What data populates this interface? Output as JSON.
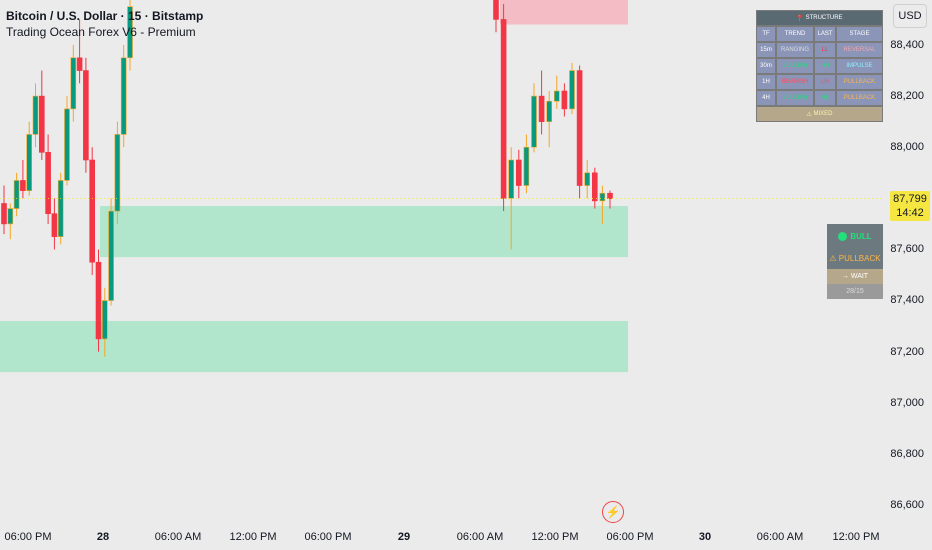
{
  "header": {
    "title": "Bitcoin / U.S. Dollar · 15 · Bitstamp",
    "indicator": "Trading Ocean Forex V6 - Premium"
  },
  "currency": "USD",
  "price_label": {
    "price": "87,799",
    "countdown": "14:42"
  },
  "y_ticks": [
    "88,400",
    "88,200",
    "88,000",
    "87,600",
    "87,400",
    "87,200",
    "87,000",
    "86,800",
    "86,600"
  ],
  "x_ticks": [
    "06:00 PM",
    "28",
    "06:00 AM",
    "12:00 PM",
    "06:00 PM",
    "29",
    "06:00 AM",
    "12:00 PM",
    "06:00 PM",
    "30",
    "06:00 AM",
    "12:00 PM"
  ],
  "structure_table": {
    "title": "STRUCTURE",
    "headers": [
      "TF",
      "TREND",
      "LAST",
      "STAGE"
    ],
    "rows": [
      {
        "tf": "15m",
        "trend": "RANGING",
        "last": "LL",
        "stage": "REVERSAL"
      },
      {
        "tf": "30m",
        "trend": "BULLISH",
        "last": "HH",
        "stage": "IMPULSE"
      },
      {
        "tf": "1H",
        "trend": "BEARISH",
        "last": "LH",
        "stage": "PULLBACK"
      },
      {
        "tf": "4H",
        "trend": "BULLISH",
        "last": "HL",
        "stage": "PULLBACK"
      }
    ],
    "footer": "MIXED"
  },
  "signal_panel": {
    "trend": "BULL",
    "stage": "PULLBACK",
    "action": "WAIT",
    "ratio": "28/15"
  },
  "colors": {
    "up": "#089981",
    "down": "#f23645",
    "wick_up": "#f5a623",
    "zone_green": "#b2e6cc",
    "zone_red": "#f4bcc5",
    "price": "#f5e642"
  },
  "chart_data": {
    "type": "candlestick",
    "symbol": "Bitcoin / U.S. Dollar",
    "interval": "15",
    "ylim": [
      86550,
      88560
    ],
    "last_price": 87799,
    "zones": [
      {
        "kind": "supply",
        "from": 88480,
        "to": 88700
      },
      {
        "kind": "demand",
        "from": 87570,
        "to": 87770
      },
      {
        "kind": "demand",
        "from": 87120,
        "to": 87320
      }
    ],
    "candles": [
      {
        "o": 87780,
        "h": 87850,
        "l": 87660,
        "c": 87700
      },
      {
        "o": 87700,
        "h": 87780,
        "l": 87640,
        "c": 87760
      },
      {
        "o": 87760,
        "h": 87900,
        "l": 87730,
        "c": 87870
      },
      {
        "o": 87870,
        "h": 87950,
        "l": 87800,
        "c": 87830
      },
      {
        "o": 87830,
        "h": 88100,
        "l": 87810,
        "c": 88050
      },
      {
        "o": 88050,
        "h": 88250,
        "l": 88000,
        "c": 88200
      },
      {
        "o": 88200,
        "h": 88300,
        "l": 87950,
        "c": 87980
      },
      {
        "o": 87980,
        "h": 88050,
        "l": 87700,
        "c": 87740
      },
      {
        "o": 87740,
        "h": 87800,
        "l": 87600,
        "c": 87650
      },
      {
        "o": 87650,
        "h": 87900,
        "l": 87620,
        "c": 87870
      },
      {
        "o": 87870,
        "h": 88200,
        "l": 87850,
        "c": 88150
      },
      {
        "o": 88150,
        "h": 88400,
        "l": 88100,
        "c": 88350
      },
      {
        "o": 88350,
        "h": 88500,
        "l": 88250,
        "c": 88300
      },
      {
        "o": 88300,
        "h": 88350,
        "l": 87900,
        "c": 87950
      },
      {
        "o": 87950,
        "h": 88000,
        "l": 87500,
        "c": 87550
      },
      {
        "o": 87550,
        "h": 87600,
        "l": 87200,
        "c": 87250
      },
      {
        "o": 87250,
        "h": 87450,
        "l": 87180,
        "c": 87400
      },
      {
        "o": 87400,
        "h": 87800,
        "l": 87380,
        "c": 87750
      },
      {
        "o": 87750,
        "h": 88100,
        "l": 87700,
        "c": 88050
      },
      {
        "o": 88050,
        "h": 88400,
        "l": 88000,
        "c": 88350
      },
      {
        "o": 88350,
        "h": 88600,
        "l": 88300,
        "c": 88550
      },
      {
        "o": 88600,
        "h": 88650,
        "l": 88450,
        "c": 88500
      },
      {
        "o": 88500,
        "h": 88560,
        "l": 87750,
        "c": 87800
      },
      {
        "o": 87800,
        "h": 88000,
        "l": 87600,
        "c": 87950
      },
      {
        "o": 87950,
        "h": 87990,
        "l": 87800,
        "c": 87850
      },
      {
        "o": 87850,
        "h": 88050,
        "l": 87820,
        "c": 88000
      },
      {
        "o": 88000,
        "h": 88250,
        "l": 87980,
        "c": 88200
      },
      {
        "o": 88200,
        "h": 88300,
        "l": 88050,
        "c": 88100
      },
      {
        "o": 88100,
        "h": 88220,
        "l": 88000,
        "c": 88180
      },
      {
        "o": 88180,
        "h": 88280,
        "l": 88150,
        "c": 88220
      },
      {
        "o": 88220,
        "h": 88250,
        "l": 88120,
        "c": 88150
      },
      {
        "o": 88150,
        "h": 88330,
        "l": 88130,
        "c": 88300
      },
      {
        "o": 88300,
        "h": 88320,
        "l": 87800,
        "c": 87850
      },
      {
        "o": 87850,
        "h": 87950,
        "l": 87800,
        "c": 87900
      },
      {
        "o": 87900,
        "h": 87920,
        "l": 87760,
        "c": 87790
      },
      {
        "o": 87790,
        "h": 87850,
        "l": 87700,
        "c": 87820
      },
      {
        "o": 87820,
        "h": 87830,
        "l": 87760,
        "c": 87799
      }
    ]
  }
}
